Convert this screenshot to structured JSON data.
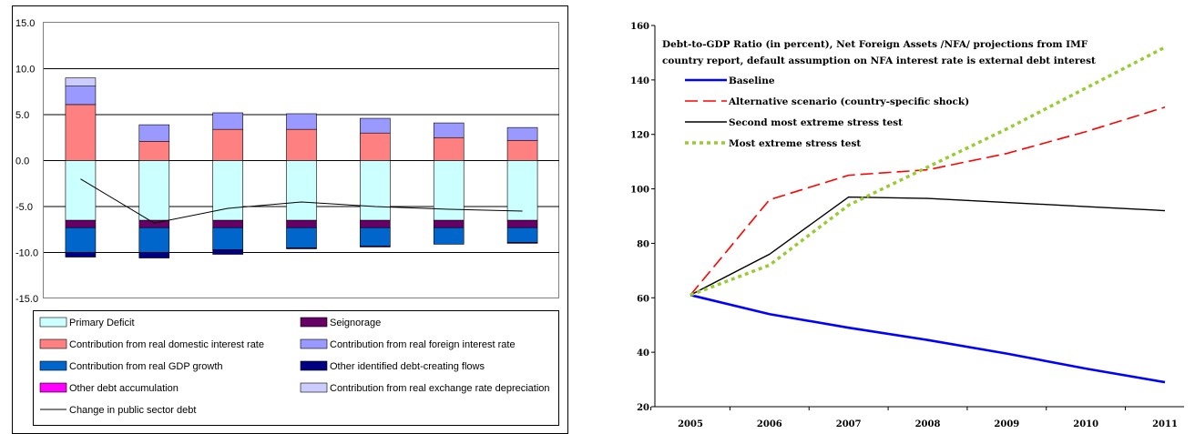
{
  "chart_data": [
    {
      "type": "bar",
      "stacked": true,
      "categories": [
        "",
        "",
        "",
        "",
        "",
        "",
        ""
      ],
      "ylim": [
        -15,
        15
      ],
      "yticks": [
        "15.0",
        "10.0",
        "5.0",
        "0.0",
        "-5.0",
        "-10.0",
        "-15.0"
      ],
      "grid": true,
      "legend_position": "bottom",
      "series": [
        {
          "name": "Primary Deficit",
          "color": "#ccffff",
          "values": [
            -6.5,
            -6.5,
            -6.5,
            -6.5,
            -6.5,
            -6.5,
            -6.5
          ]
        },
        {
          "name": "Seignorage",
          "color": "#660066",
          "values": [
            -0.8,
            -0.8,
            -0.8,
            -0.8,
            -0.8,
            -0.8,
            -0.8
          ]
        },
        {
          "name": "Contribution from real domestic interest rate",
          "color": "#ff8080",
          "values": [
            6.1,
            2.1,
            3.4,
            3.4,
            3.0,
            2.5,
            2.2
          ]
        },
        {
          "name": "Contribution from real foreign interest rate",
          "color": "#9999ff",
          "values": [
            2.0,
            1.8,
            1.8,
            1.7,
            1.6,
            1.6,
            1.4
          ]
        },
        {
          "name": "Contribution from real GDP growth",
          "color": "#0066cc",
          "values": [
            -2.7,
            -2.7,
            -2.4,
            -2.2,
            -2.0,
            -1.8,
            -1.6
          ]
        },
        {
          "name": "Other identified debt-creating flows",
          "color": "#000080",
          "values": [
            -0.5,
            -0.6,
            -0.5,
            -0.1,
            -0.1,
            0,
            -0.1
          ]
        },
        {
          "name": "Other debt accumulation",
          "color": "#ff00ff",
          "values": [
            0,
            0,
            0,
            0,
            0,
            0,
            0
          ]
        },
        {
          "name": "Contribution from real exchange rate depreciation",
          "color": "#ccccff",
          "values": [
            0.9,
            0,
            0,
            0,
            0,
            0,
            0
          ]
        },
        {
          "name": "Change in public sector debt",
          "color": "#000000",
          "type": "line",
          "values": [
            -2.0,
            -6.8,
            -5.2,
            -4.5,
            -5.0,
            -5.3,
            -5.5
          ]
        }
      ]
    },
    {
      "type": "line",
      "title": "Debt-to-GDP Ratio (in percent), Net Foreign Assets /NFA/ projections from IMF country report, default assumption on NFA interest rate is external debt interest",
      "x": [
        "2005",
        "2006",
        "2007",
        "2008",
        "2009",
        "2010",
        "2011"
      ],
      "ylim": [
        20,
        160
      ],
      "yticks": [
        "160",
        "140",
        "120",
        "100",
        "80",
        "60",
        "40",
        "20"
      ],
      "grid": false,
      "legend_position": "top-left",
      "series": [
        {
          "name": "Baseline",
          "color": "#0000ff",
          "style": "solid",
          "values": [
            61,
            54,
            49,
            44.5,
            39.5,
            34,
            29
          ]
        },
        {
          "name": "Alternative scenario (country-specific shock)",
          "color": "#ff0000",
          "style": "dashed",
          "values": [
            61,
            96,
            105,
            107,
            113,
            121,
            130
          ]
        },
        {
          "name": "Second most extreme stress test",
          "color": "#000000",
          "style": "solid",
          "values": [
            61,
            76,
            97,
            96.5,
            95,
            93.5,
            92
          ]
        },
        {
          "name": "Most extreme stress test",
          "color": "#99cc33",
          "style": "dotted",
          "values": [
            61,
            72,
            94,
            108,
            122,
            137,
            152
          ]
        }
      ]
    }
  ]
}
